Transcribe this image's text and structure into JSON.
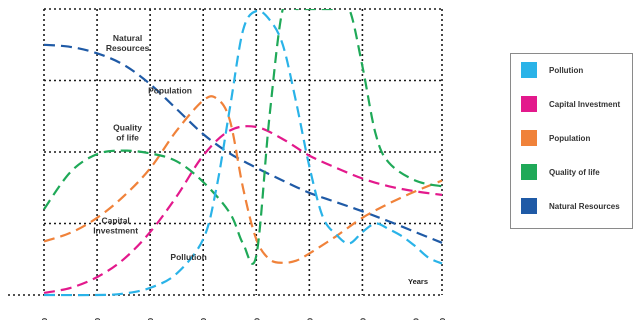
{
  "chart_data": {
    "type": "line",
    "xlabel": "Years",
    "ylabel": "",
    "xlim": [
      1900,
      2200
    ],
    "ylim": [
      0,
      4
    ],
    "x_ticks": [
      "1900",
      "1940",
      "1980",
      "2020",
      "2060",
      "2100",
      "2140",
      "2180",
      "2200"
    ],
    "grid": true,
    "legend_position": "right",
    "series": [
      {
        "name": "Natural Resources",
        "color": "#1f5aa6",
        "x": [
          1900,
          1920,
          1940,
          1960,
          1980,
          2000,
          2020,
          2040,
          2060,
          2080,
          2100,
          2120,
          2140,
          2160,
          2180,
          2200
        ],
        "y": [
          3.5,
          3.47,
          3.38,
          3.22,
          2.95,
          2.6,
          2.25,
          1.98,
          1.78,
          1.6,
          1.43,
          1.3,
          1.17,
          1.03,
          0.88,
          0.73
        ]
      },
      {
        "name": "Population",
        "color": "#f0823a",
        "x": [
          1900,
          1920,
          1940,
          1960,
          1980,
          2000,
          2020,
          2030,
          2040,
          2050,
          2060,
          2070,
          2080,
          2090,
          2100,
          2120,
          2140,
          2160,
          2180,
          2200
        ],
        "y": [
          0.75,
          0.87,
          1.08,
          1.38,
          1.77,
          2.3,
          2.72,
          2.75,
          2.45,
          1.5,
          0.78,
          0.5,
          0.45,
          0.48,
          0.58,
          0.82,
          1.08,
          1.28,
          1.45,
          1.6
        ]
      },
      {
        "name": "Capital Investment",
        "color": "#e3198c",
        "x": [
          1900,
          1920,
          1940,
          1960,
          1980,
          2000,
          2020,
          2040,
          2060,
          2080,
          2100,
          2120,
          2140,
          2160,
          2180,
          2200
        ],
        "y": [
          0.03,
          0.1,
          0.25,
          0.5,
          0.88,
          1.38,
          1.95,
          2.3,
          2.35,
          2.18,
          1.95,
          1.78,
          1.63,
          1.52,
          1.45,
          1.4
        ]
      },
      {
        "name": "Quality of life",
        "color": "#1fa958",
        "x": [
          1900,
          1920,
          1940,
          1960,
          1980,
          2000,
          2020,
          2040,
          2050,
          2060,
          2070,
          2080,
          2090,
          2100,
          2110,
          2120,
          2130,
          2140,
          2150,
          2160,
          2180,
          2200
        ],
        "y": [
          1.2,
          1.72,
          1.97,
          2.02,
          1.98,
          1.87,
          1.58,
          1.15,
          0.72,
          0.55,
          2.5,
          4.0,
          4.0,
          4.0,
          4.0,
          4.0,
          4.0,
          3.2,
          2.25,
          1.85,
          1.6,
          1.52
        ]
      },
      {
        "name": "Pollution",
        "color": "#2ab3e8",
        "x": [
          1900,
          1940,
          1960,
          1980,
          2000,
          2020,
          2030,
          2040,
          2050,
          2060,
          2070,
          2080,
          2090,
          2100,
          2110,
          2120,
          2130,
          2140,
          2150,
          2160,
          2170,
          2180,
          2190,
          2200
        ],
        "y": [
          0.0,
          0.0,
          0.02,
          0.1,
          0.3,
          0.78,
          1.5,
          2.6,
          3.7,
          3.97,
          3.85,
          3.5,
          2.7,
          1.8,
          1.1,
          0.85,
          0.72,
          0.88,
          1.0,
          0.92,
          0.82,
          0.68,
          0.52,
          0.44
        ]
      }
    ],
    "annotations": [
      {
        "lines": [
          "Natural",
          "Resources"
        ],
        "x": 1963,
        "y": 3.55
      },
      {
        "lines": [
          "Population"
        ],
        "x": 1995,
        "y": 2.82
      },
      {
        "lines": [
          "Quality",
          "of life"
        ],
        "x": 1963,
        "y": 2.3
      },
      {
        "lines": [
          "Capital",
          "Investment"
        ],
        "x": 1954,
        "y": 1.0
      },
      {
        "lines": [
          "Pollution"
        ],
        "x": 2009,
        "y": 0.49
      }
    ],
    "legend": [
      {
        "label": "Pollution",
        "color": "#2ab3e8"
      },
      {
        "label": "Capital Investment",
        "color": "#e3198c"
      },
      {
        "label": "Population",
        "color": "#f0823a"
      },
      {
        "label": "Quality of life",
        "color": "#1fa958"
      },
      {
        "label": "Natural Resources",
        "color": "#1f5aa6"
      }
    ]
  }
}
